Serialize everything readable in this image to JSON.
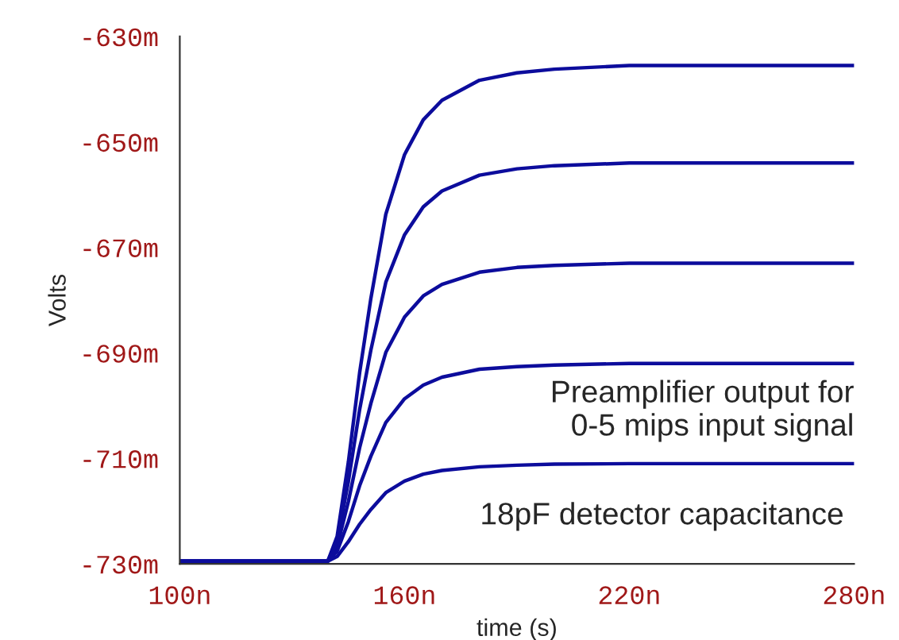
{
  "chart_data": {
    "type": "line",
    "xlabel": "time (s)",
    "ylabel": "Volts",
    "annotations": [
      "Preamplifier output for\n0-5 mips input signal",
      "18pF detector capacitance"
    ],
    "x": [
      100,
      139.5,
      142,
      145,
      148,
      151,
      155,
      160,
      165,
      170,
      180,
      190,
      200,
      220,
      280
    ],
    "series": [
      {
        "color": "#0c0c9c",
        "values": [
          -729.5,
          -729.5,
          -724.8,
          -710.7,
          -693.8,
          -679.7,
          -663.7,
          -652.4,
          -645.8,
          -642.1,
          -638.3,
          -636.9,
          -636.2,
          -635.5,
          -635.5
        ]
      },
      {
        "color": "#0c0c9c",
        "values": [
          -729.5,
          -729.5,
          -725.7,
          -714.4,
          -700.8,
          -689.5,
          -676.6,
          -667.6,
          -662.3,
          -659.3,
          -656.3,
          -655.1,
          -654.5,
          -654,
          -654
        ]
      },
      {
        "color": "#0c0c9c",
        "values": [
          -729.5,
          -729.5,
          -726.7,
          -718.2,
          -708.0,
          -699.6,
          -689.9,
          -683.2,
          -679.2,
          -677.0,
          -674.7,
          -673.8,
          -673.4,
          -673,
          -673
        ]
      },
      {
        "color": "#0c0c9c",
        "values": [
          -729.5,
          -729.5,
          -727.6,
          -722.0,
          -715.2,
          -709.6,
          -703.2,
          -698.7,
          -696.1,
          -694.6,
          -693.1,
          -692.6,
          -692.3,
          -692,
          -692
        ]
      },
      {
        "color": "#0c0c9c",
        "values": [
          -729.5,
          -729.5,
          -728.6,
          -725.8,
          -722.5,
          -719.7,
          -716.5,
          -714.3,
          -713.0,
          -712.3,
          -711.6,
          -711.3,
          -711.1,
          -711,
          -711
        ]
      }
    ],
    "xlim": [
      100,
      280
    ],
    "xticks": [
      {
        "value": 100,
        "label": "100n"
      },
      {
        "value": 160,
        "label": "160n"
      },
      {
        "value": 220,
        "label": "220n"
      },
      {
        "value": 280,
        "label": "280n"
      }
    ],
    "ylim": [
      -730,
      -630
    ],
    "yticks": [
      {
        "value": -730,
        "label": "-730m"
      },
      {
        "value": -710,
        "label": "-710m"
      },
      {
        "value": -690,
        "label": "-690m"
      },
      {
        "value": -670,
        "label": "-670m"
      },
      {
        "value": -650,
        "label": "-650m"
      },
      {
        "value": -630,
        "label": "-630m"
      }
    ],
    "grid": false,
    "legend": false,
    "marker": "none",
    "line_style": "solid"
  }
}
